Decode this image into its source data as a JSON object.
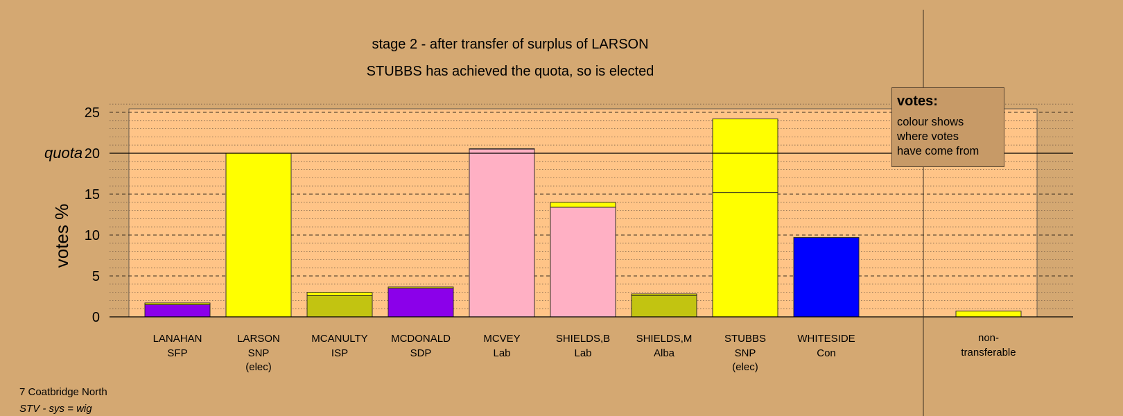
{
  "title": "stage 2 - after transfer of surplus of LARSON",
  "subtitle": "STUBBS has achieved the quota, so is elected",
  "legend": {
    "title": "votes:",
    "lines": [
      "colour shows",
      "where votes",
      "have come from"
    ]
  },
  "footer": {
    "ward": "7 Coatbridge North",
    "system": "STV - sys = wig"
  },
  "colors": {
    "background": "#d4a872",
    "plot_area": "#ffc487",
    "SNP": "#ffff00",
    "Lab": "#ffb0c4",
    "SFP": "#8b00ea",
    "SDP": "#8b00ea",
    "ISP": "#c2c411",
    "Alba": "#c2c411",
    "Con": "#0000ff"
  },
  "chart_data": {
    "type": "bar",
    "stacked": true,
    "ylabel": "votes %",
    "ylim": [
      0,
      25
    ],
    "yticks": [
      0,
      5,
      10,
      15,
      20,
      25
    ],
    "quota": {
      "label": "quota",
      "value": 20
    },
    "grid": true,
    "categories": [
      {
        "name": "LANAHAN",
        "party": "SFP",
        "note": ""
      },
      {
        "name": "LARSON",
        "party": "SNP",
        "note": "(elec)"
      },
      {
        "name": "MCANULTY",
        "party": "ISP",
        "note": ""
      },
      {
        "name": "MCDONALD",
        "party": "SDP",
        "note": ""
      },
      {
        "name": "MCVEY",
        "party": "Lab",
        "note": ""
      },
      {
        "name": "SHIELDS,B",
        "party": "Lab",
        "note": ""
      },
      {
        "name": "SHIELDS,M",
        "party": "Alba",
        "note": ""
      },
      {
        "name": "STUBBS",
        "party": "SNP",
        "note": "(elec)"
      },
      {
        "name": "WHITESIDE",
        "party": "Con",
        "note": ""
      }
    ],
    "bars": [
      {
        "segments": [
          {
            "from": "SFP",
            "value": 1.5
          },
          {
            "from": "SNP",
            "value": 0.2
          }
        ]
      },
      {
        "segments": [
          {
            "from": "SNP",
            "value": 20.0
          }
        ]
      },
      {
        "segments": [
          {
            "from": "ISP",
            "value": 2.6
          },
          {
            "from": "SNP",
            "value": 0.4
          }
        ]
      },
      {
        "segments": [
          {
            "from": "SDP",
            "value": 3.5
          },
          {
            "from": "SNP",
            "value": 0.15
          }
        ]
      },
      {
        "segments": [
          {
            "from": "Lab",
            "value": 20.5
          },
          {
            "from": "SNP",
            "value": 0.05
          }
        ]
      },
      {
        "segments": [
          {
            "from": "Lab",
            "value": 13.4
          },
          {
            "from": "SNP",
            "value": 0.6
          }
        ]
      },
      {
        "segments": [
          {
            "from": "Alba",
            "value": 2.6
          },
          {
            "from": "SNP",
            "value": 0.2
          }
        ]
      },
      {
        "segments": [
          {
            "from": "SNP",
            "value": 15.2
          },
          {
            "from": "SNP",
            "value": 9.0
          }
        ]
      },
      {
        "segments": [
          {
            "from": "Con",
            "value": 9.7
          }
        ]
      }
    ],
    "non_transferable": {
      "label_lines": [
        "non-",
        "transferable"
      ],
      "segments": [
        {
          "from": "SNP",
          "value": 0.7
        }
      ]
    }
  }
}
